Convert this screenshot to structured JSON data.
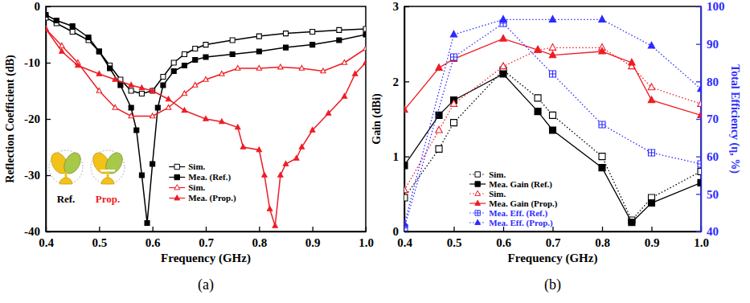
{
  "chart_data": [
    {
      "type": "line",
      "title": "(a)",
      "xlabel": "Frequency (GHz)",
      "ylabel": "Reflection Coefficient (dB)",
      "xlim": [
        0.4,
        1
      ],
      "xticks": [
        0.4,
        0.5,
        0.6,
        0.7,
        0.8,
        0.9,
        {
          "value": 1,
          "label": "1.0"
        }
      ],
      "ylim": [
        -40,
        0
      ],
      "yticks": [
        -40,
        -30,
        -20,
        -10,
        0
      ],
      "grid": false,
      "legend": "lower middle",
      "annotations": [
        "Ref.",
        "Prop."
      ],
      "series": [
        {
          "name": "Sim.",
          "color": "#000000",
          "marker": "square-open",
          "line_style": "solid",
          "x": [
            0.4,
            0.42,
            0.45,
            0.48,
            0.5,
            0.52,
            0.54,
            0.56,
            0.58,
            0.6,
            0.62,
            0.64,
            0.66,
            0.68,
            0.7,
            0.75,
            0.8,
            0.85,
            0.9,
            0.95,
            1.0
          ],
          "values": [
            -2,
            -3,
            -4.5,
            -6,
            -8,
            -10.5,
            -13,
            -15,
            -15.5,
            -15,
            -12.5,
            -10,
            -8.5,
            -7.5,
            -6.8,
            -6,
            -5.3,
            -4.8,
            -4.5,
            -4.2,
            -4
          ]
        },
        {
          "name": "Mea. (Ref.)",
          "color": "#000000",
          "marker": "square",
          "line_style": "solid",
          "x": [
            0.4,
            0.42,
            0.45,
            0.48,
            0.5,
            0.52,
            0.54,
            0.56,
            0.57,
            0.58,
            0.59,
            0.6,
            0.61,
            0.62,
            0.64,
            0.66,
            0.68,
            0.7,
            0.75,
            0.8,
            0.85,
            0.9,
            0.95,
            1.0
          ],
          "values": [
            -1.5,
            -2.5,
            -3.5,
            -5.5,
            -8,
            -11,
            -14,
            -18,
            -22,
            -30,
            -38.5,
            -28,
            -18,
            -14,
            -11.5,
            -10.5,
            -9.5,
            -9,
            -8.5,
            -8,
            -7.3,
            -6.8,
            -6,
            -5
          ]
        },
        {
          "name": "Sim.",
          "color": "#ee1c24",
          "marker": "triangle-open",
          "line_style": "solid",
          "x": [
            0.4,
            0.43,
            0.46,
            0.5,
            0.53,
            0.56,
            0.6,
            0.63,
            0.66,
            0.68,
            0.7,
            0.73,
            0.76,
            0.8,
            0.84,
            0.88,
            0.92,
            0.96,
            1.0
          ],
          "values": [
            -4,
            -7,
            -10,
            -15,
            -18,
            -19.5,
            -19.5,
            -18,
            -15.5,
            -14,
            -13,
            -12,
            -11,
            -11,
            -10.8,
            -11,
            -11.5,
            -10,
            -7.5
          ]
        },
        {
          "name": "Mea. (Prop.)",
          "color": "#ee1c24",
          "marker": "triangle",
          "line_style": "solid",
          "x": [
            0.4,
            0.43,
            0.46,
            0.5,
            0.53,
            0.56,
            0.58,
            0.6,
            0.63,
            0.66,
            0.7,
            0.73,
            0.76,
            0.77,
            0.8,
            0.81,
            0.82,
            0.83,
            0.84,
            0.85,
            0.87,
            0.88,
            0.9,
            0.93,
            0.96,
            0.98,
            1.0
          ],
          "values": [
            -4,
            -8,
            -10.5,
            -12,
            -13,
            -14,
            -14.5,
            -15,
            -16.5,
            -18.5,
            -20,
            -20.5,
            -21.5,
            -25,
            -25.5,
            -30,
            -36,
            -39,
            -30,
            -28,
            -27,
            -25,
            -22,
            -19,
            -16,
            -12,
            -10
          ]
        }
      ]
    },
    {
      "type": "line",
      "title": "(b)",
      "xlabel": "Frequency (GHz)",
      "ylabel": "Gain (dBi)",
      "y2label": "Total Efficiency (η, %)",
      "xlim": [
        0.4,
        1
      ],
      "xticks": [
        0.4,
        0.5,
        0.6,
        0.7,
        0.8,
        0.9,
        {
          "value": 1,
          "label": "1.0"
        }
      ],
      "ylim": [
        0,
        3
      ],
      "yticks": [
        0,
        1,
        2,
        3
      ],
      "y2lim": [
        40,
        100
      ],
      "y2ticks": [
        40,
        50,
        60,
        70,
        80,
        90,
        100
      ],
      "grid": false,
      "legend": "lower left",
      "series": [
        {
          "name": "Sim.",
          "color": "#000000",
          "marker": "square-open",
          "line_style": "dotted",
          "x": [
            0.4,
            0.47,
            0.5,
            0.6,
            0.67,
            0.7,
            0.8,
            0.86,
            0.9,
            1.0
          ],
          "values": [
            0.45,
            1.1,
            1.45,
            2.15,
            1.78,
            1.55,
            1.0,
            0.15,
            0.45,
            0.8
          ]
        },
        {
          "name": "Mea. Gain (Ref.)",
          "color": "#000000",
          "marker": "square",
          "line_style": "solid",
          "x": [
            0.4,
            0.47,
            0.5,
            0.6,
            0.67,
            0.7,
            0.8,
            0.86,
            0.9,
            1.0
          ],
          "values": [
            0.88,
            1.55,
            1.75,
            2.1,
            1.6,
            1.35,
            0.85,
            0.12,
            0.38,
            0.65
          ]
        },
        {
          "name": "Sim.",
          "color": "#ee1c24",
          "marker": "triangle-open",
          "line_style": "dotted",
          "x": [
            0.4,
            0.47,
            0.5,
            0.6,
            0.67,
            0.7,
            0.8,
            0.86,
            0.9,
            1.0
          ],
          "values": [
            0.55,
            1.35,
            1.7,
            2.2,
            2.42,
            2.45,
            2.45,
            2.2,
            1.92,
            1.7
          ]
        },
        {
          "name": "Mea. Gain (Prop.)",
          "color": "#ee1c24",
          "marker": "triangle",
          "line_style": "solid",
          "x": [
            0.4,
            0.47,
            0.5,
            0.6,
            0.67,
            0.7,
            0.8,
            0.86,
            0.9,
            1.0
          ],
          "values": [
            1.62,
            2.18,
            2.3,
            2.57,
            2.42,
            2.35,
            2.4,
            2.25,
            1.75,
            1.55
          ]
        },
        {
          "name": "Mea. Eff. (Ref.)",
          "color": "#2b2bff",
          "marker": "square-cross",
          "line_style": "dotted",
          "axis": "y2",
          "x": [
            0.4,
            0.5,
            0.6,
            0.7,
            0.8,
            0.9,
            1.0
          ],
          "values": [
            41,
            86.5,
            95.5,
            82,
            68.5,
            61,
            58
          ]
        },
        {
          "name": "Mea. Eff. (Prop.)",
          "color": "#2b2bff",
          "marker": "triangle",
          "line_style": "dotted",
          "axis": "y2",
          "x": [
            0.4,
            0.5,
            0.6,
            0.7,
            0.8,
            0.9,
            1.0
          ],
          "values": [
            42,
            92.5,
            96.5,
            96.5,
            96.5,
            89.5,
            78
          ]
        }
      ]
    }
  ]
}
